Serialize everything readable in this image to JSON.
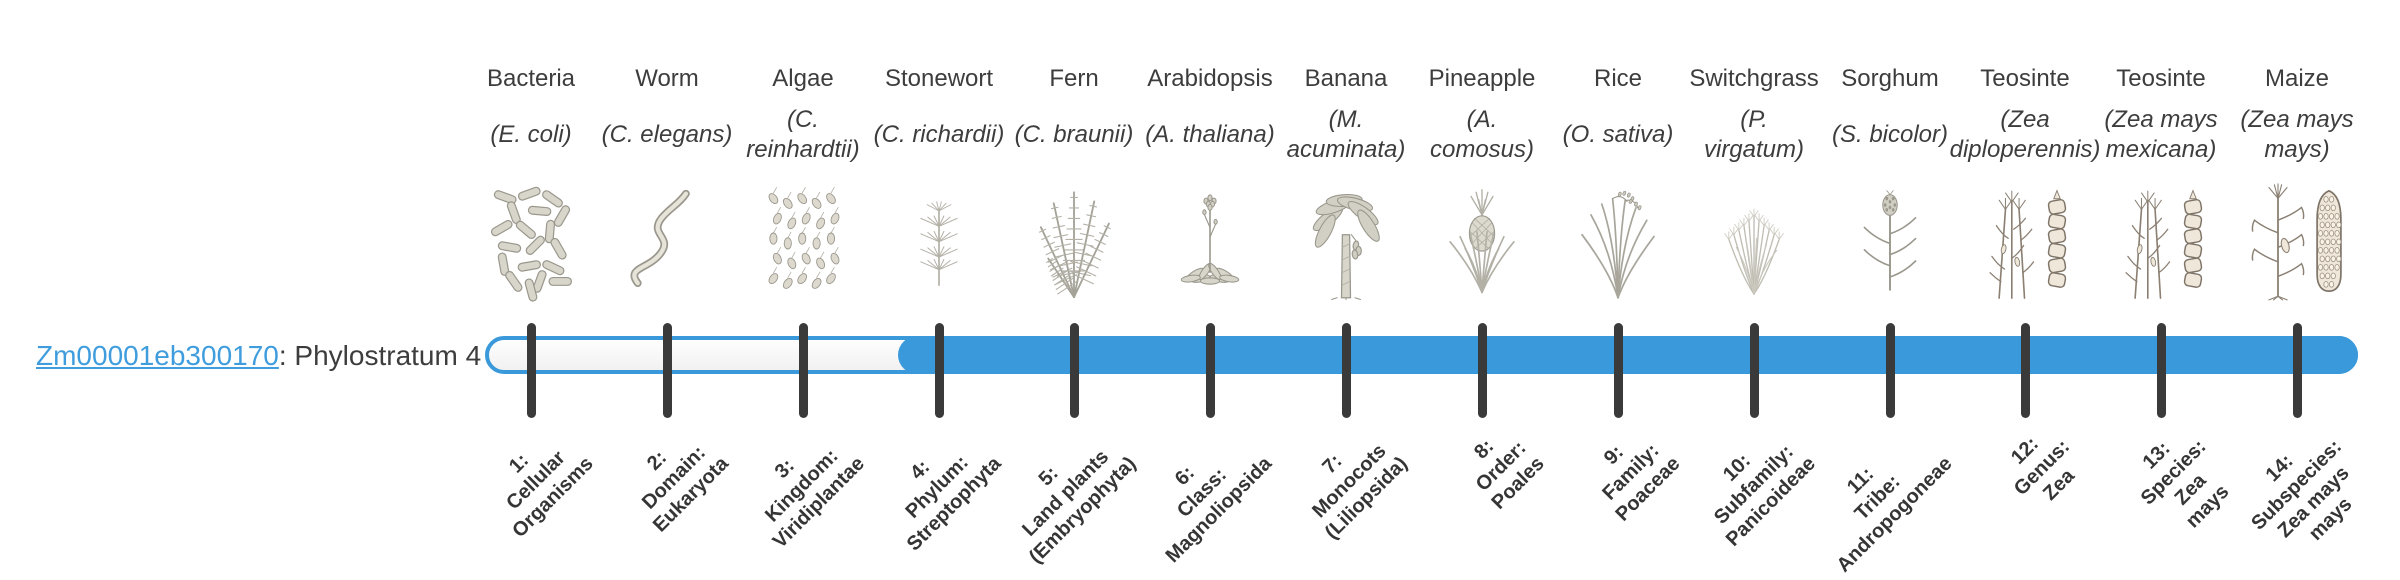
{
  "gene_label": {
    "id": "Zm00001eb300170",
    "description": ": Phylostratum 4",
    "link_color": "#3f9dde"
  },
  "timeline": {
    "bar_fill_color": "#3a99da",
    "bar_border_color": "#3a99da",
    "bar_empty_color": "#fafafa",
    "tick_color": "#3a3a3a",
    "highlight_start_stratum": 4,
    "total_strata": 14
  },
  "organisms": [
    {
      "name": "Bacteria",
      "scientific": "(E. coli)",
      "stratum_label": "1:\nCellular\nOrganisms",
      "icons": [
        "bacteria"
      ]
    },
    {
      "name": "Worm",
      "scientific": "(C. elegans)",
      "stratum_label": "2:\nDomain:\nEukaryota",
      "icons": [
        "worm"
      ]
    },
    {
      "name": "Algae",
      "scientific": "(C.\nreinhardtii)",
      "stratum_label": "3:\nKingdom:\nViridiplantae",
      "icons": [
        "algae"
      ]
    },
    {
      "name": "Stonewort",
      "scientific": "(C. richardii)",
      "stratum_label": "4:\nPhylum:\nStreptophyta",
      "icons": [
        "stonewort"
      ]
    },
    {
      "name": "Fern",
      "scientific": "(C. braunii)",
      "stratum_label": "5:\nLand plants\n(Embryophyta)",
      "icons": [
        "fern"
      ]
    },
    {
      "name": "Arabidopsis",
      "scientific": "(A. thaliana)",
      "stratum_label": "6:\nClass:\nMagnoliopsida",
      "icons": [
        "arabidopsis"
      ]
    },
    {
      "name": "Banana",
      "scientific": "(M.\nacuminata)",
      "stratum_label": "7:\nMonocots\n(Liliopsida)",
      "icons": [
        "banana"
      ]
    },
    {
      "name": "Pineapple",
      "scientific": "(A.\ncomosus)",
      "stratum_label": "8:\nOrder:\nPoales",
      "icons": [
        "pineapple"
      ]
    },
    {
      "name": "Rice",
      "scientific": "(O. sativa)",
      "stratum_label": "9:\nFamily:\nPoaceae",
      "icons": [
        "rice"
      ]
    },
    {
      "name": "Switchgrass",
      "scientific": "(P.\nvirgatum)",
      "stratum_label": "10:\nSubfamily:\nPanicoideae",
      "icons": [
        "switchgrass"
      ]
    },
    {
      "name": "Sorghum",
      "scientific": "(S. bicolor)",
      "stratum_label": "11:\nTribe:\nAndropogoneae",
      "icons": [
        "sorghum"
      ]
    },
    {
      "name": "Teosinte",
      "scientific": "(Zea\ndiploperennis)",
      "stratum_label": "12:\nGenus:\nZea",
      "icons": [
        "teosinte-plant",
        "teosinte-ear"
      ]
    },
    {
      "name": "Teosinte",
      "scientific": "(Zea mays\nmexicana)",
      "stratum_label": "13:\nSpecies:\nZea\nmays",
      "icons": [
        "teosinte-plant",
        "teosinte-ear"
      ]
    },
    {
      "name": "Maize",
      "scientific": "(Zea mays\nmays)",
      "stratum_label": "14:\nSubspecies:\nZea mays\nmays",
      "icons": [
        "maize-plant",
        "maize-ear"
      ]
    }
  ]
}
